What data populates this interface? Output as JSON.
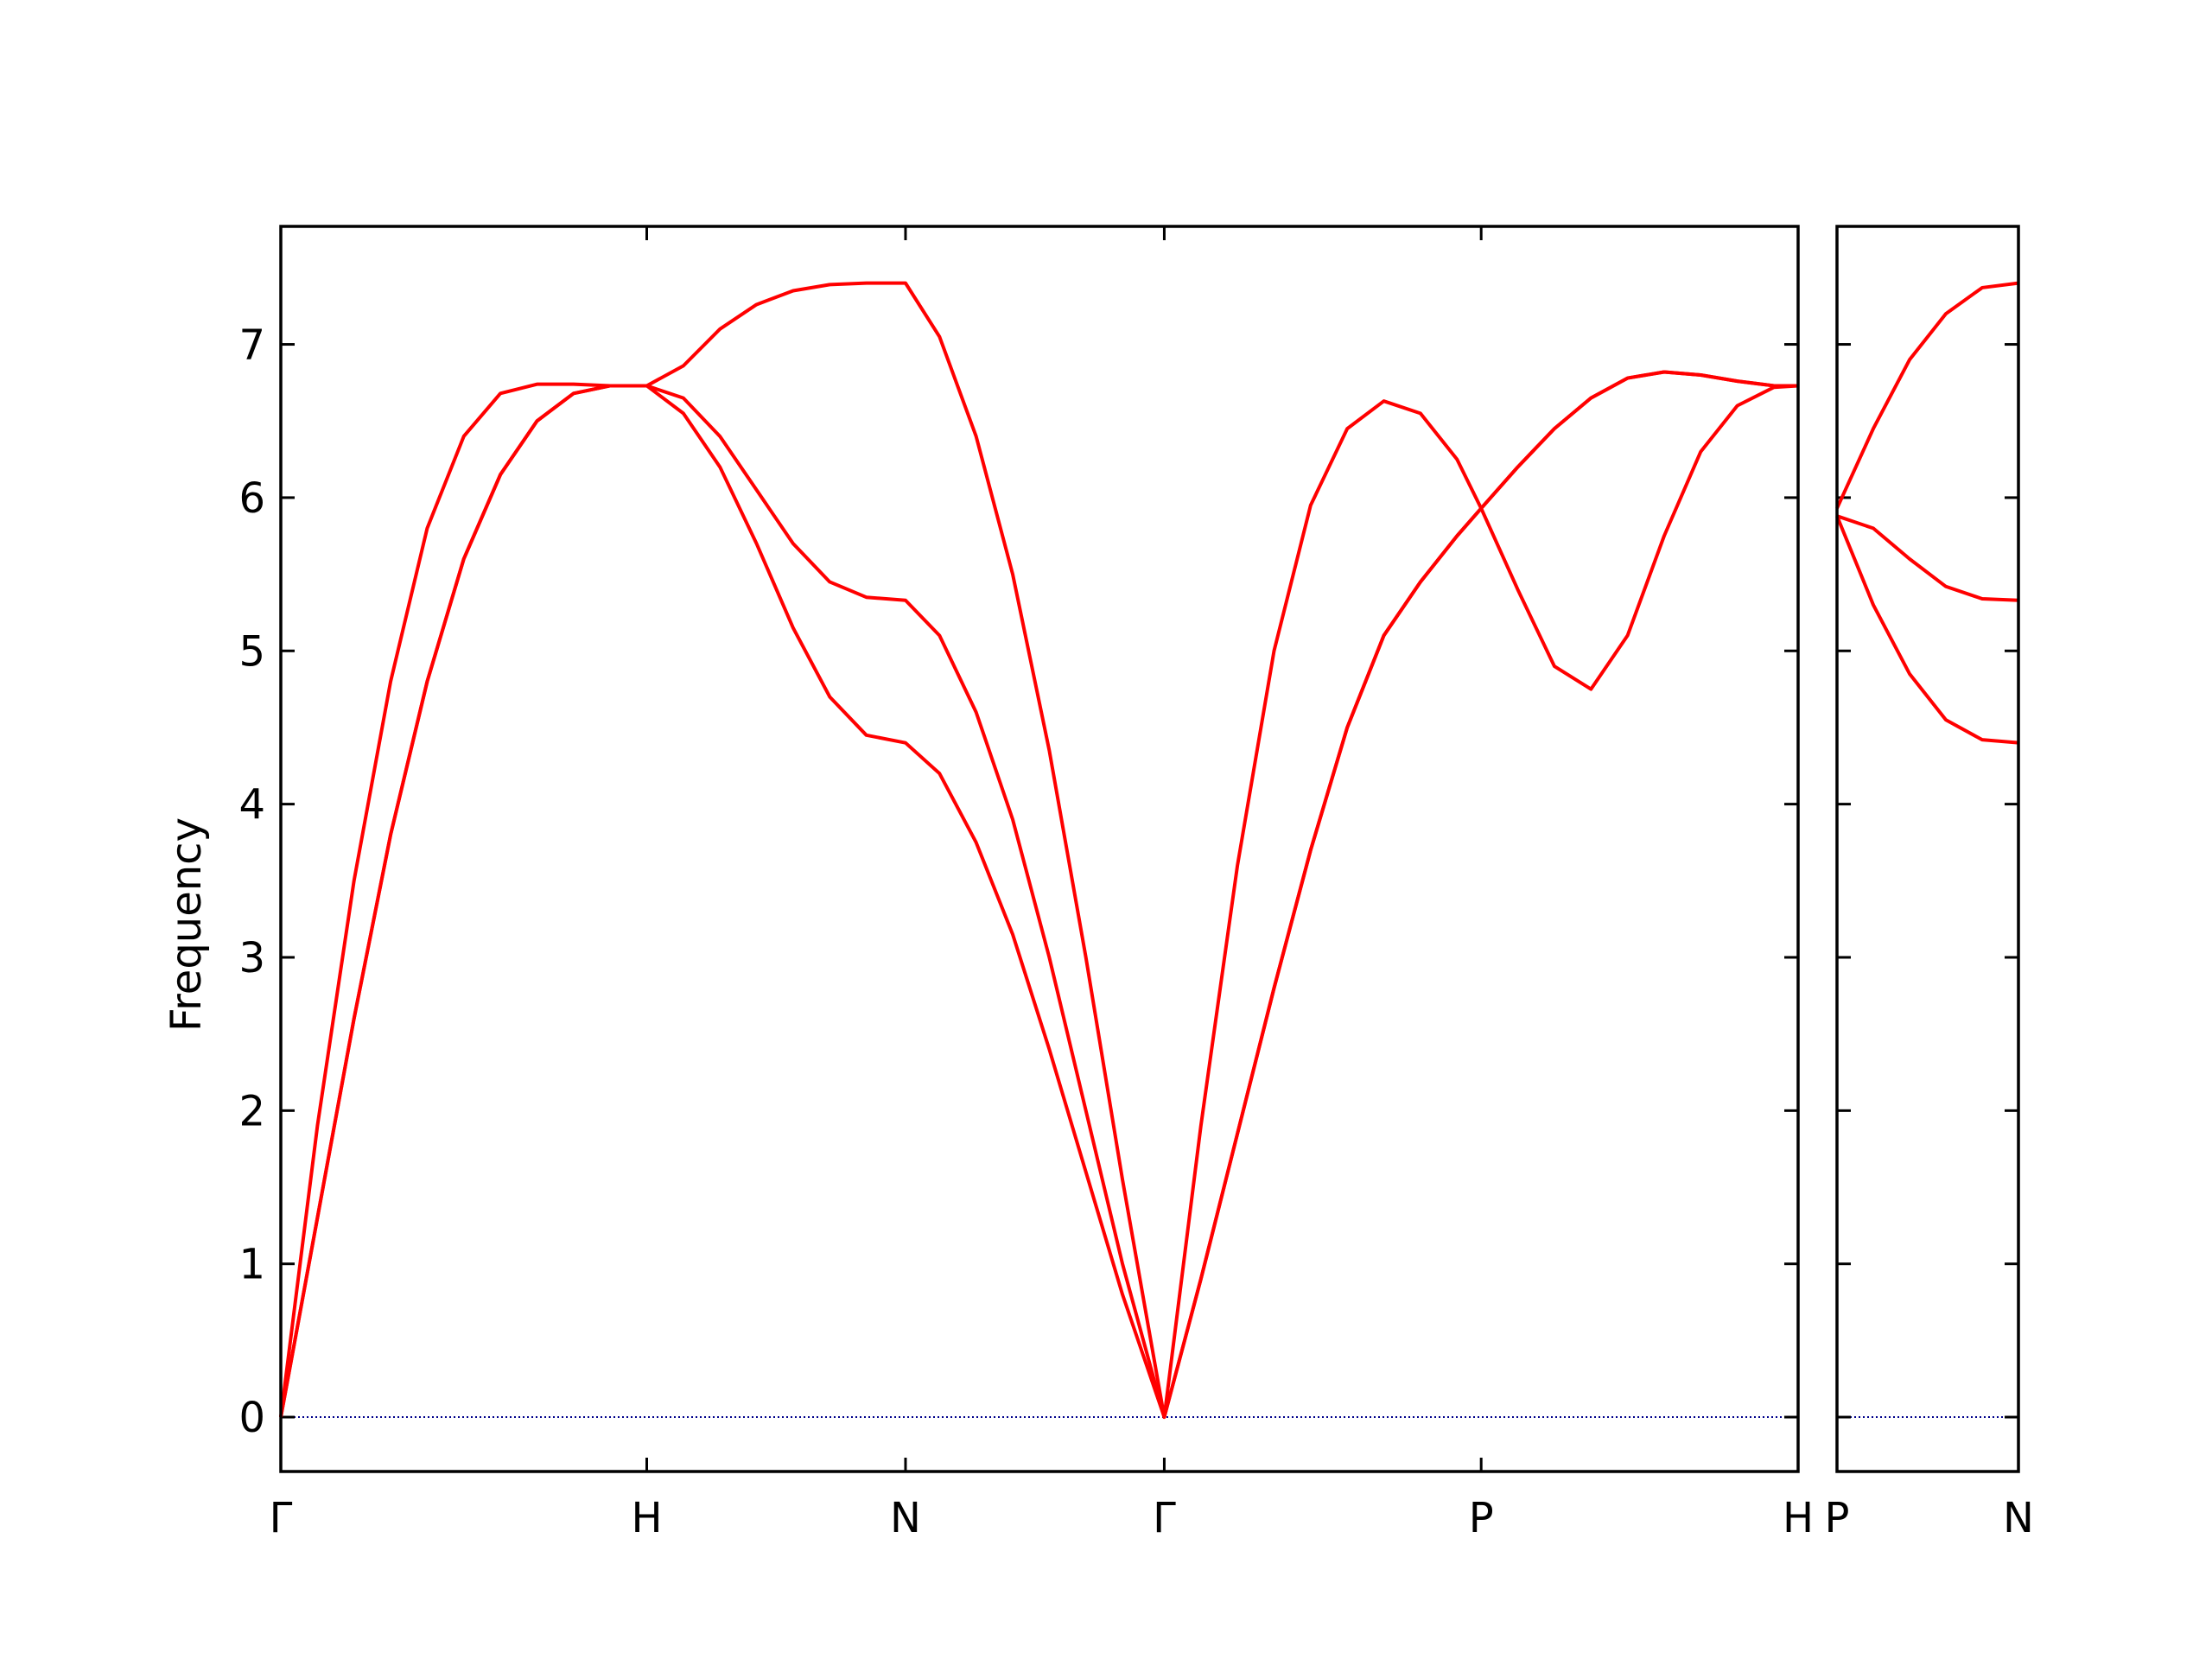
{
  "chart_data": [
    {
      "type": "line",
      "ylabel": "Frequency",
      "xlim": [
        0,
        4.1463
      ],
      "ylim": [
        -0.355,
        7.77
      ],
      "xticks": [
        {
          "value": 0,
          "label": "Γ"
        },
        {
          "value": 1,
          "label": "H"
        },
        {
          "value": 1.7071,
          "label": "N"
        },
        {
          "value": 2.4142,
          "label": "Γ"
        },
        {
          "value": 3.2802,
          "label": "P"
        },
        {
          "value": 4.1463,
          "label": "H"
        }
      ],
      "yticks": [
        0,
        1,
        2,
        3,
        4,
        5,
        6,
        7
      ],
      "ytick_labels": true,
      "hline": {
        "value": 0,
        "color": "#00008b"
      },
      "series": [
        {
          "color": "#ff0000",
          "x": [
            0,
            0.1,
            0.2,
            0.3,
            0.4,
            0.5,
            0.6,
            0.7,
            0.8,
            0.9,
            1,
            1.1,
            1.2,
            1.3,
            1.4,
            1.5,
            1.6,
            1.7071,
            1.8,
            1.9,
            2.0,
            2.1,
            2.2,
            2.3,
            2.4142,
            2.5142,
            2.6142,
            2.7142,
            2.8142,
            2.9142,
            3.0142,
            3.1142,
            3.2142,
            3.2802,
            3.3802,
            3.4802,
            3.5802,
            3.6802,
            3.7802,
            3.8802,
            3.9802,
            4.0802,
            4.1463
          ],
          "values": [
            0,
            1.9,
            3.5,
            4.8,
            5.8,
            6.4,
            6.68,
            6.74,
            6.74,
            6.73,
            6.73,
            6.86,
            7.1,
            7.26,
            7.35,
            7.39,
            7.4,
            7.4,
            7.05,
            6.4,
            5.5,
            4.35,
            3.0,
            1.55,
            0,
            1.9,
            3.6,
            5.0,
            5.95,
            6.45,
            6.63,
            6.55,
            6.25,
            5.93,
            5.4,
            4.9,
            4.75,
            5.1,
            5.75,
            6.3,
            6.6,
            6.72,
            6.73
          ]
        },
        {
          "color": "#ff0000",
          "x": [
            0,
            0.1,
            0.2,
            0.3,
            0.4,
            0.5,
            0.6,
            0.7,
            0.8,
            0.9,
            1,
            1.1,
            1.2,
            1.3,
            1.4,
            1.5,
            1.6,
            1.7071,
            1.8,
            1.9,
            2.0,
            2.1,
            2.2,
            2.3,
            2.4142,
            2.5142,
            2.6142,
            2.7142,
            2.8142,
            2.9142,
            3.0142,
            3.1142,
            3.2142,
            3.2802,
            3.3802,
            3.4802,
            3.5802,
            3.6802,
            3.7802,
            3.8802,
            3.9802,
            4.0802,
            4.1463
          ],
          "values": [
            0,
            1.3,
            2.6,
            3.8,
            4.8,
            5.6,
            6.15,
            6.5,
            6.68,
            6.73,
            6.73,
            6.65,
            6.4,
            6.05,
            5.7,
            5.45,
            5.35,
            5.33,
            5.1,
            4.6,
            3.9,
            3.0,
            2.0,
            1.0,
            0,
            0.9,
            1.85,
            2.8,
            3.7,
            4.5,
            5.1,
            5.45,
            5.75,
            5.93,
            6.2,
            6.45,
            6.65,
            6.78,
            6.82,
            6.8,
            6.76,
            6.73,
            6.73
          ]
        },
        {
          "color": "#ff0000",
          "x": [
            0,
            0.1,
            0.2,
            0.3,
            0.4,
            0.5,
            0.6,
            0.7,
            0.8,
            0.9,
            1,
            1.1,
            1.2,
            1.3,
            1.4,
            1.5,
            1.6,
            1.7071,
            1.8,
            1.9,
            2.0,
            2.1,
            2.2,
            2.3,
            2.4142,
            2.5142,
            2.6142,
            2.7142,
            2.8142,
            2.9142,
            3.0142,
            3.1142,
            3.2142,
            3.2802,
            3.3802,
            3.4802,
            3.5802,
            3.6802,
            3.7802,
            3.8802,
            3.9802,
            4.0802,
            4.1463
          ],
          "values": [
            0,
            1.3,
            2.6,
            3.8,
            4.8,
            5.6,
            6.15,
            6.5,
            6.68,
            6.73,
            6.73,
            6.55,
            6.2,
            5.7,
            5.15,
            4.7,
            4.45,
            4.4,
            4.2,
            3.75,
            3.15,
            2.4,
            1.6,
            0.8,
            0,
            0.9,
            1.85,
            2.8,
            3.7,
            4.5,
            5.1,
            5.45,
            5.75,
            5.93,
            6.2,
            6.45,
            6.65,
            6.78,
            6.82,
            6.8,
            6.76,
            6.73,
            6.73
          ]
        }
      ]
    },
    {
      "type": "line",
      "xlim": [
        0,
        0.5
      ],
      "ylim": [
        -0.355,
        7.77
      ],
      "xticks": [
        {
          "value": 0,
          "label": "P"
        },
        {
          "value": 0.5,
          "label": "N"
        }
      ],
      "yticks": [
        0,
        1,
        2,
        3,
        4,
        5,
        6,
        7
      ],
      "ytick_labels": false,
      "hline": {
        "value": 0,
        "color": "#00008b"
      },
      "series": [
        {
          "color": "#ff0000",
          "x": [
            0,
            0.1,
            0.2,
            0.3,
            0.4,
            0.5
          ],
          "values": [
            5.93,
            6.45,
            6.9,
            7.2,
            7.37,
            7.4
          ]
        },
        {
          "color": "#ff0000",
          "x": [
            0,
            0.1,
            0.2,
            0.3,
            0.4,
            0.5
          ],
          "values": [
            5.88,
            5.8,
            5.6,
            5.42,
            5.34,
            5.33
          ]
        },
        {
          "color": "#ff0000",
          "x": [
            0,
            0.1,
            0.2,
            0.3,
            0.4,
            0.5
          ],
          "values": [
            5.88,
            5.3,
            4.85,
            4.55,
            4.42,
            4.4
          ]
        }
      ]
    }
  ]
}
